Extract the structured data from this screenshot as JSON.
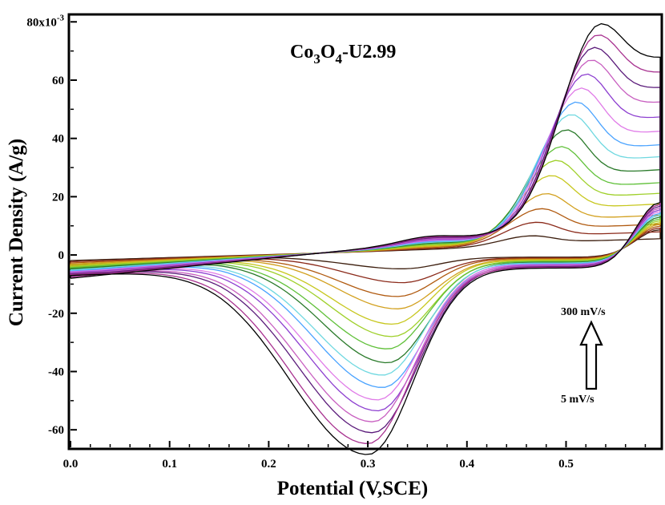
{
  "chart_data": {
    "type": "line",
    "title_parts": {
      "a": "Co",
      "b": "3",
      "c": "O",
      "d": "4",
      "e": "-U2.99"
    },
    "xlabel": "Potential (V,SCE)",
    "ylabel": "Current Density (A/g)",
    "xlim": [
      0.0,
      0.595
    ],
    "ylim": [
      -0.066,
      0.082
    ],
    "x_ticks": [
      {
        "value": 0.0,
        "label": "0.0"
      },
      {
        "value": 0.1,
        "label": "0.1"
      },
      {
        "value": 0.2,
        "label": "0.2"
      },
      {
        "value": 0.3,
        "label": "0.3"
      },
      {
        "value": 0.4,
        "label": "0.4"
      },
      {
        "value": 0.5,
        "label": "0.5"
      }
    ],
    "y_ticks": [
      {
        "value": -0.06,
        "label": "-60"
      },
      {
        "value": -0.04,
        "label": "-40"
      },
      {
        "value": -0.02,
        "label": "-20"
      },
      {
        "value": 0.0,
        "label": "0"
      },
      {
        "value": 0.02,
        "label": "20"
      },
      {
        "value": 0.04,
        "label": "40"
      },
      {
        "value": 0.06,
        "label": "60"
      },
      {
        "value": 0.08,
        "label": "80x10"
      }
    ],
    "y_exponent": "-3",
    "annotations": {
      "top": "300 mV/s",
      "bottom": "5 mV/s"
    },
    "grid": false,
    "series": [
      {
        "color": "#3d1f0f",
        "anodic_peak": [
          0.465,
          0.0045
        ],
        "cathodic_peak": [
          0.335,
          -0.0045
        ]
      },
      {
        "color": "#8b2a1a",
        "anodic_peak": [
          0.47,
          0.0095
        ],
        "cathodic_peak": [
          0.335,
          -0.009
        ]
      },
      {
        "color": "#b05a10",
        "anodic_peak": [
          0.475,
          0.0145
        ],
        "cathodic_peak": [
          0.33,
          -0.0135
        ]
      },
      {
        "color": "#d2a01e",
        "anodic_peak": [
          0.48,
          0.02
        ],
        "cathodic_peak": [
          0.33,
          -0.0175
        ]
      },
      {
        "color": "#c7c71e",
        "anodic_peak": [
          0.485,
          0.0265
        ],
        "cathodic_peak": [
          0.325,
          -0.0225
        ]
      },
      {
        "color": "#9fd02a",
        "anodic_peak": [
          0.49,
          0.032
        ],
        "cathodic_peak": [
          0.325,
          -0.0265
        ]
      },
      {
        "color": "#5fc038",
        "anodic_peak": [
          0.495,
          0.037
        ],
        "cathodic_peak": [
          0.32,
          -0.0305
        ]
      },
      {
        "color": "#2a7a2a",
        "anodic_peak": [
          0.5,
          0.043
        ],
        "cathodic_peak": [
          0.32,
          -0.035
        ]
      },
      {
        "color": "#6fd8e0",
        "anodic_peak": [
          0.505,
          0.0485
        ],
        "cathodic_peak": [
          0.315,
          -0.039
        ]
      },
      {
        "color": "#4aa3ff",
        "anodic_peak": [
          0.51,
          0.053
        ],
        "cathodic_peak": [
          0.315,
          -0.043
        ]
      },
      {
        "color": "#e07ce8",
        "anodic_peak": [
          0.515,
          0.058
        ],
        "cathodic_peak": [
          0.31,
          -0.047
        ]
      },
      {
        "color": "#8d3fd0",
        "anodic_peak": [
          0.52,
          0.063
        ],
        "cathodic_peak": [
          0.31,
          -0.0505
        ]
      },
      {
        "color": "#c85fc0",
        "anodic_peak": [
          0.525,
          0.068
        ],
        "cathodic_peak": [
          0.305,
          -0.054
        ]
      },
      {
        "color": "#5a1a7a",
        "anodic_peak": [
          0.528,
          0.0725
        ],
        "cathodic_peak": [
          0.305,
          -0.0575
        ]
      },
      {
        "color": "#a83290",
        "anodic_peak": [
          0.532,
          0.077
        ],
        "cathodic_peak": [
          0.3,
          -0.061
        ]
      },
      {
        "color": "#000000",
        "anodic_peak": [
          0.535,
          0.081
        ],
        "cathodic_peak": [
          0.3,
          -0.0645
        ]
      }
    ]
  }
}
